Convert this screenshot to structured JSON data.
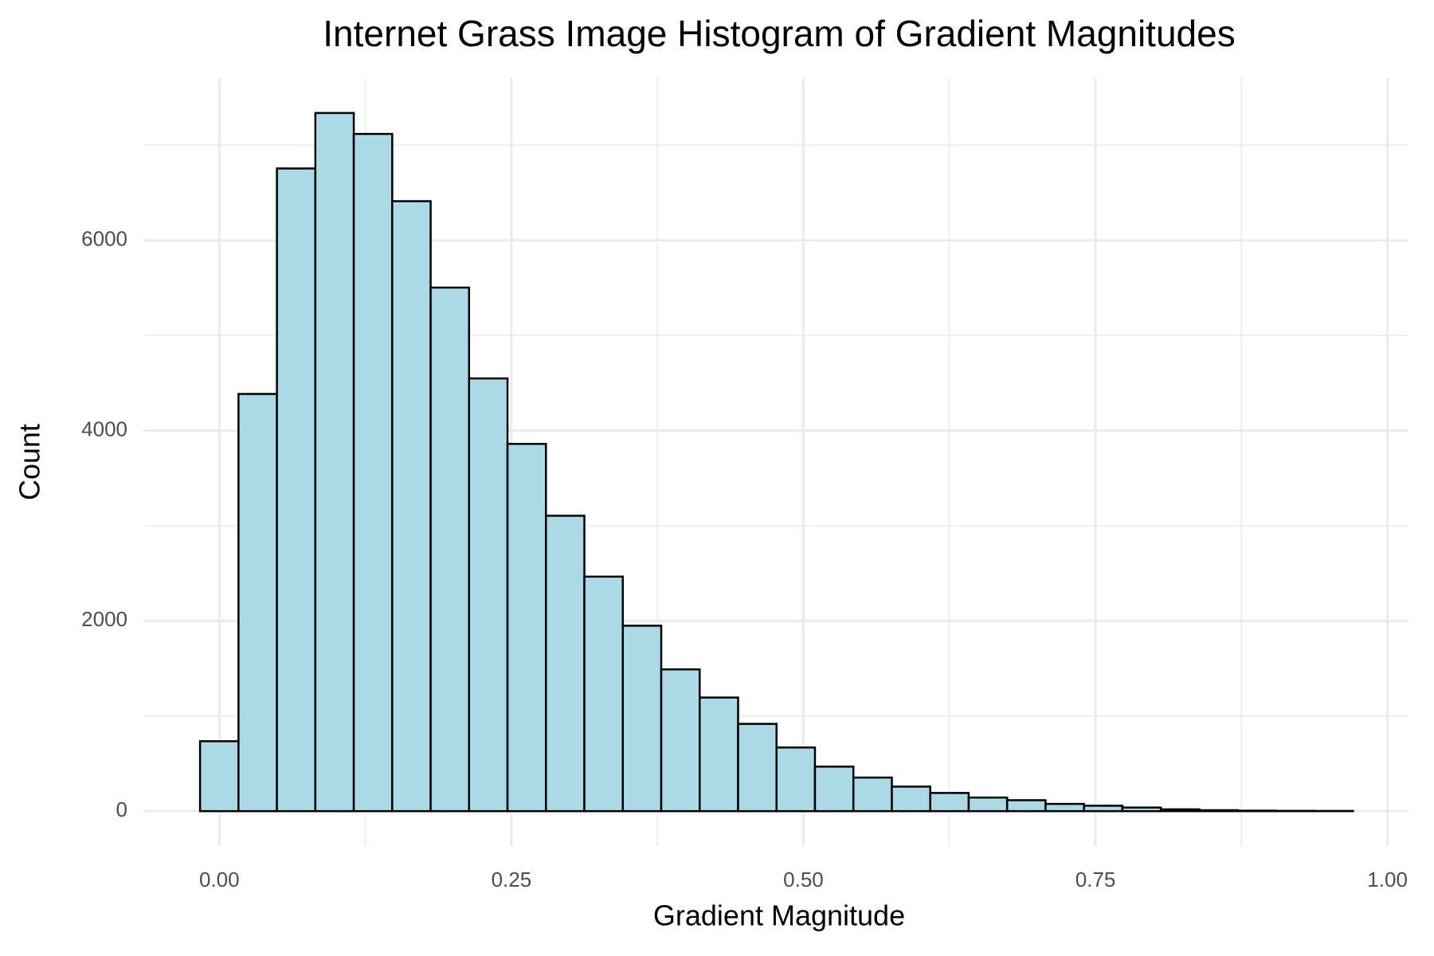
{
  "chart_data": {
    "type": "histogram",
    "title": "Internet Grass Image Histogram of Gradient Magnitudes",
    "x_label": "Gradient Magnitude",
    "y_label": "Count",
    "bins": [
      -0.0165,
      0.0164,
      0.0493,
      0.0822,
      0.1151,
      0.148,
      0.1809,
      0.2138,
      0.2467,
      0.2796,
      0.3125,
      0.3454,
      0.3783,
      0.4112,
      0.4441,
      0.477,
      0.5099,
      0.5428,
      0.5757,
      0.6086,
      0.6415,
      0.6744,
      0.7073,
      0.7402,
      0.7731,
      0.806,
      0.8389,
      0.8718,
      0.9047,
      0.9376,
      0.9705
    ],
    "counts": [
      735,
      4385,
      6755,
      7338,
      7118,
      6411,
      5503,
      4548,
      3860,
      3105,
      2465,
      1949,
      1490,
      1194,
      917,
      669,
      468,
      353,
      258,
      191,
      143,
      115,
      76,
      57,
      38,
      19,
      10,
      5,
      3,
      2
    ],
    "color": "#add8e6",
    "edge_color": "#000000",
    "xlim": [
      -0.065,
      1.018
    ],
    "ylim": [
      -367,
      7705
    ],
    "xticks": [
      {
        "value": 0,
        "label": "0.00"
      },
      {
        "value": 0.25,
        "label": "0.25"
      },
      {
        "value": 0.5,
        "label": "0.50"
      },
      {
        "value": 0.75,
        "label": "0.75"
      },
      {
        "value": 1,
        "label": "1.00"
      }
    ],
    "yticks": [
      0,
      2000,
      4000,
      6000
    ],
    "x_minor_ticks": [
      0.125,
      0.375,
      0.625,
      0.875
    ],
    "y_minor_ticks": [
      1000,
      3000,
      5000,
      7000
    ],
    "grid": true
  }
}
